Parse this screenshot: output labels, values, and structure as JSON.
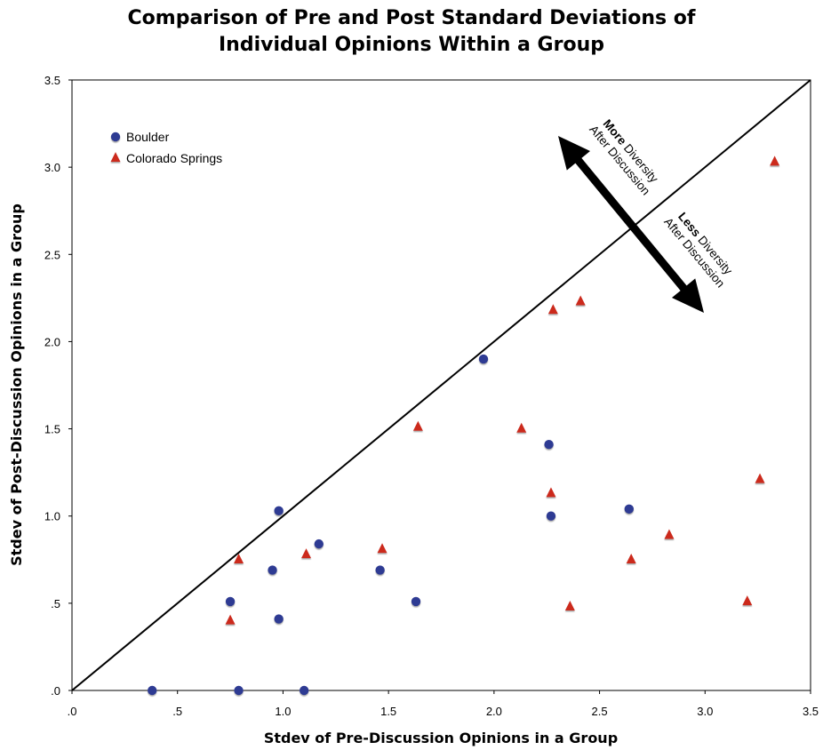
{
  "chart_data": {
    "type": "scatter",
    "title": [
      "Comparison of Pre and Post Standard Deviations of",
      "Individual Opinions Within a Group"
    ],
    "xlabel": "Stdev of Pre-Discussion Opinions in a Group",
    "ylabel": "Stdev of Post-Discussion Opinions in a Group",
    "xlim": [
      0,
      3.5
    ],
    "ylim": [
      0,
      3.5
    ],
    "xticks": [
      ".0",
      ".5",
      "1.0",
      "1.5",
      "2.0",
      "2.5",
      "3.0",
      "3.5"
    ],
    "yticks": [
      ".0",
      ".5",
      "1.0",
      "1.5",
      "2.0",
      "2.5",
      "3.0",
      "3.5"
    ],
    "grid": false,
    "legend_position": "top-left",
    "reference_line": {
      "x": [
        0,
        3.5
      ],
      "y": [
        0,
        3.5
      ]
    },
    "series": [
      {
        "name": "Boulder",
        "marker": "circle",
        "color": "#2e3a93",
        "points": [
          [
            0.38,
            0.0
          ],
          [
            0.79,
            0.0
          ],
          [
            1.1,
            0.0
          ],
          [
            0.75,
            0.51
          ],
          [
            0.98,
            0.41
          ],
          [
            0.95,
            0.69
          ],
          [
            0.98,
            1.03
          ],
          [
            1.17,
            0.84
          ],
          [
            1.46,
            0.69
          ],
          [
            1.63,
            0.51
          ],
          [
            1.95,
            1.9
          ],
          [
            2.26,
            1.41
          ],
          [
            2.27,
            1.0
          ],
          [
            2.64,
            1.04
          ]
        ]
      },
      {
        "name": "Colorado Springs",
        "marker": "triangle",
        "color": "#cc2a1e",
        "points": [
          [
            0.75,
            0.4
          ],
          [
            0.79,
            0.75
          ],
          [
            1.11,
            0.78
          ],
          [
            1.47,
            0.81
          ],
          [
            1.64,
            1.51
          ],
          [
            2.13,
            1.5
          ],
          [
            2.27,
            1.13
          ],
          [
            2.28,
            2.18
          ],
          [
            2.36,
            0.48
          ],
          [
            2.41,
            2.23
          ],
          [
            2.65,
            0.75
          ],
          [
            2.83,
            0.89
          ],
          [
            3.2,
            0.51
          ],
          [
            3.26,
            1.21
          ],
          [
            3.33,
            3.03
          ]
        ]
      }
    ],
    "annotations": [
      {
        "bold": "More",
        "rest": " Diversity",
        "line2": "After Discussion"
      },
      {
        "bold": "Less",
        "rest": " Diversity",
        "line2": "After Discussion"
      }
    ]
  }
}
